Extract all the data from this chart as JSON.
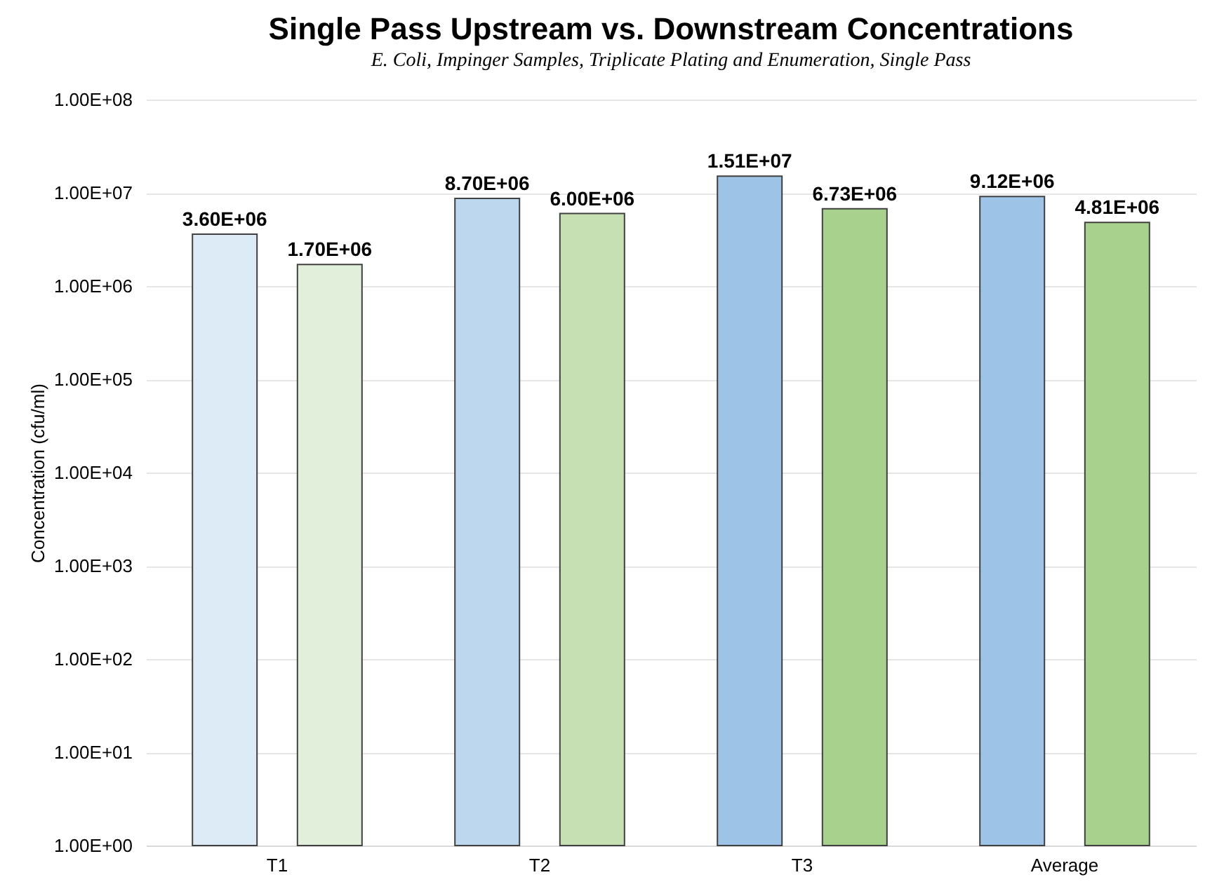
{
  "chart_data": {
    "type": "bar",
    "title": "Single Pass Upstream vs. Downstream Concentrations",
    "subtitle": "E. Coli, Impinger Samples, Triplicate Plating and Enumeration, Single Pass",
    "ylabel": "Concentration (cfu/ml)",
    "categories": [
      "T1",
      "T2",
      "T3",
      "Average"
    ],
    "series": [
      {
        "colors": [
          "#ddebf7",
          "#bdd7ee",
          "#9dc3e6",
          "#9dc3e6"
        ],
        "values": [
          3600000,
          8700000,
          15100000,
          9120000
        ],
        "value_labels": [
          "3.60E+06",
          "8.70E+06",
          "1.51E+07",
          "9.12E+06"
        ]
      },
      {
        "colors": [
          "#e2efda",
          "#c6e0b4",
          "#a9d18e",
          "#a9d18e"
        ],
        "values": [
          1700000,
          6000000,
          6730000,
          4810000
        ],
        "value_labels": [
          "1.70E+06",
          "6.00E+06",
          "6.73E+06",
          "4.81E+06"
        ]
      }
    ],
    "log": "y",
    "ylim": [
      1,
      100000000
    ],
    "yticks": [
      {
        "value": 1,
        "label": "1.00E+00"
      },
      {
        "value": 10,
        "label": "1.00E+01"
      },
      {
        "value": 100,
        "label": "1.00E+02"
      },
      {
        "value": 1000,
        "label": "1.00E+03"
      },
      {
        "value": 10000,
        "label": "1.00E+04"
      },
      {
        "value": 100000,
        "label": "1.00E+05"
      },
      {
        "value": 1000000,
        "label": "1.00E+06"
      },
      {
        "value": 10000000,
        "label": "1.00E+07"
      },
      {
        "value": 100000000,
        "label": "1.00E+08"
      }
    ],
    "grid": "y",
    "legend": false
  }
}
